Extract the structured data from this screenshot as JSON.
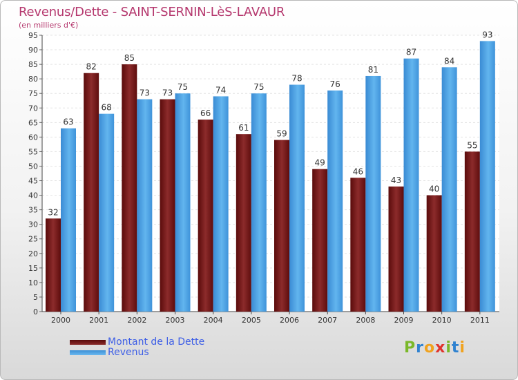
{
  "header": {
    "title": "Revenus/Dette - SAINT-SERNIN-LèS-LAVAUR",
    "subtitle": "(en milliers d'€)"
  },
  "legend": {
    "debt_label": "Montant de la Dette",
    "revenue_label": "Revenus"
  },
  "logo": {
    "text": "Proxiti",
    "letters": [
      "P",
      "r",
      "o",
      "x",
      "i",
      "t",
      "i"
    ]
  },
  "colors": {
    "debt": "#6e1414",
    "revenue": "#4ea6e6",
    "title": "#b5386e",
    "legend_text": "#3d5ee6",
    "logo_letters": [
      "#7ab829",
      "#2f82d0",
      "#f0a21e",
      "#e0342c",
      "#7ab829",
      "#2f82d0",
      "#f0a21e"
    ]
  },
  "chart_data": {
    "type": "bar",
    "categories": [
      "2000",
      "2001",
      "2002",
      "2003",
      "2004",
      "2005",
      "2006",
      "2007",
      "2008",
      "2009",
      "2010",
      "2011"
    ],
    "series": [
      {
        "name": "Montant de la Dette",
        "values": [
          32,
          82,
          85,
          73,
          66,
          61,
          59,
          49,
          46,
          43,
          40,
          55
        ]
      },
      {
        "name": "Revenus",
        "values": [
          63,
          68,
          73,
          75,
          74,
          75,
          78,
          76,
          81,
          87,
          84,
          93
        ]
      }
    ],
    "ylim": [
      0,
      95
    ],
    "ytick_step": 5,
    "grid": true,
    "legend_position": "bottom-left",
    "data_labels": true
  }
}
